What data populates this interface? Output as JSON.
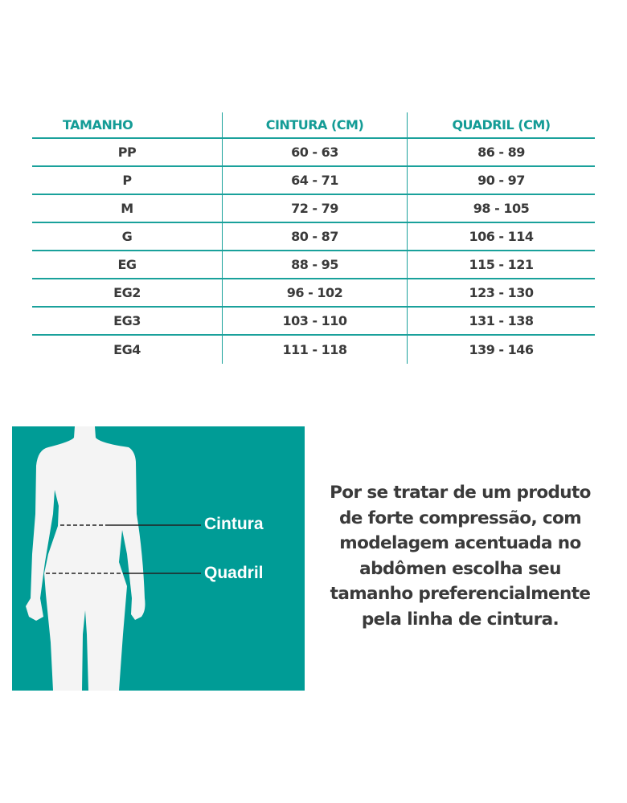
{
  "table": {
    "headers": [
      "TAMANHO",
      "CINTURA (CM)",
      "QUADRIL (CM)"
    ],
    "rows": [
      [
        "PP",
        "60 - 63",
        "86 - 89"
      ],
      [
        "P",
        "64 - 71",
        "90 - 97"
      ],
      [
        "M",
        "72 - 79",
        "98 - 105"
      ],
      [
        "G",
        "80 - 87",
        "106 - 114"
      ],
      [
        "EG",
        "88 - 95",
        "115 - 121"
      ],
      [
        "EG2",
        "96 - 102",
        "123 - 130"
      ],
      [
        "EG3",
        "103 - 110",
        "131 - 138"
      ],
      [
        "EG4",
        "111 - 118",
        "139 - 146"
      ]
    ]
  },
  "figure": {
    "waist_label": "Cintura",
    "hip_label": "Quadril"
  },
  "note": "Por se tratar de um produto de forte compressão, com modelagem acentuada no abdômen escolha seu tamanho preferencialmente pela linha de cintura.",
  "colors": {
    "accent": "#009c96",
    "text": "#3a3a3a"
  }
}
